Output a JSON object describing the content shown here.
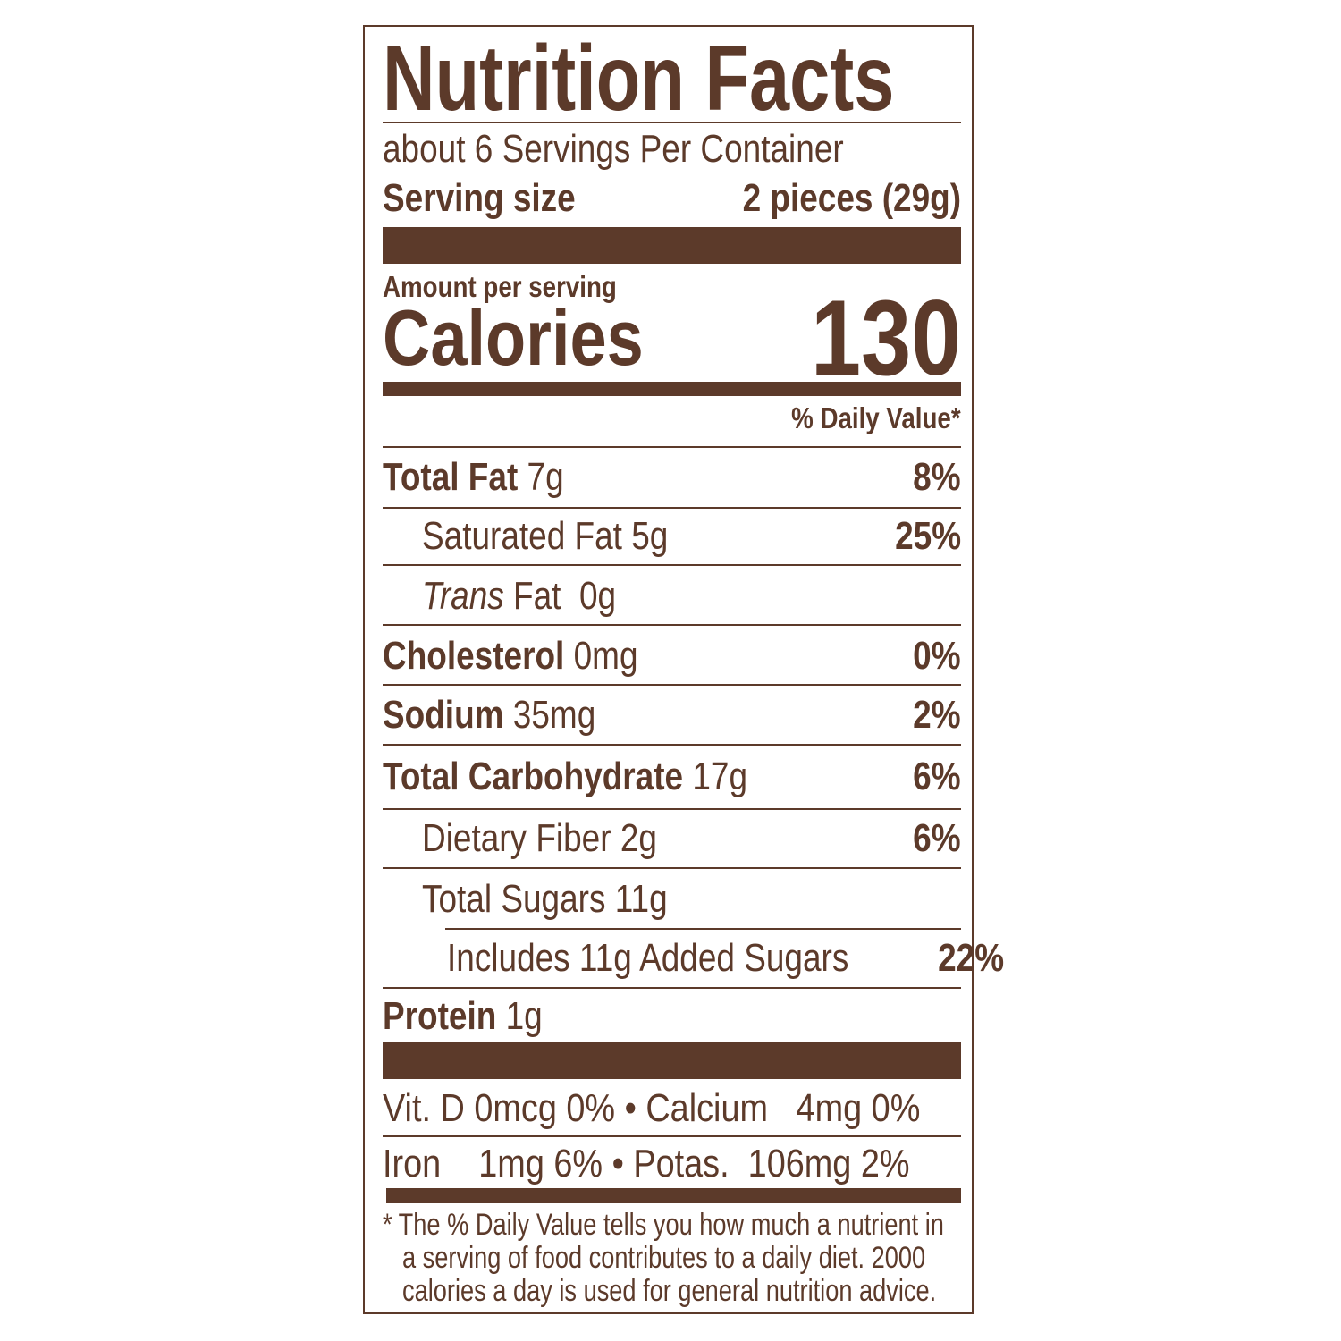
{
  "title": "Nutrition Facts",
  "servings_per_container": "about 6 Servings Per Container",
  "serving_size": {
    "label": "Serving size",
    "value": "2 pieces (29g)"
  },
  "amount_per_serving": "Amount per serving",
  "calories": {
    "label": "Calories",
    "value": "130"
  },
  "daily_value_header": "% Daily Value*",
  "nutrients": [
    {
      "name": "Total Fat",
      "amount": "7g",
      "dv": "8%"
    },
    {
      "name": "Saturated Fat",
      "amount": "5g",
      "dv": "25%"
    },
    {
      "name_italic": "Trans",
      "name": "Fat",
      "amount": "0g",
      "dv": ""
    },
    {
      "name": "Cholesterol",
      "amount": "0mg",
      "dv": "0%"
    },
    {
      "name": "Sodium",
      "amount": "35mg",
      "dv": "2%"
    },
    {
      "name": "Total Carbohydrate",
      "amount": "17g",
      "dv": "6%"
    },
    {
      "name": "Dietary Fiber",
      "amount": "2g",
      "dv": "6%"
    },
    {
      "name": "Total Sugars",
      "amount": "11g",
      "dv": ""
    },
    {
      "name": "Includes 11g Added Sugars",
      "amount": "",
      "dv": "22%"
    },
    {
      "name": "Protein",
      "amount": "1g",
      "dv": ""
    }
  ],
  "vitamins": [
    "Vit. D 0mcg 0% • Calcium   4mg 0%",
    "Iron    1mg 6% • Potas.  106mg 2%"
  ],
  "footnote": [
    "* The % Daily Value tells you how much a nutrient in",
    "a serving of food contributes to a daily diet. 2000",
    "calories a day is used for general nutrition advice."
  ],
  "colors": {
    "ink": "#5c3a2a",
    "background": "#ffffff"
  }
}
